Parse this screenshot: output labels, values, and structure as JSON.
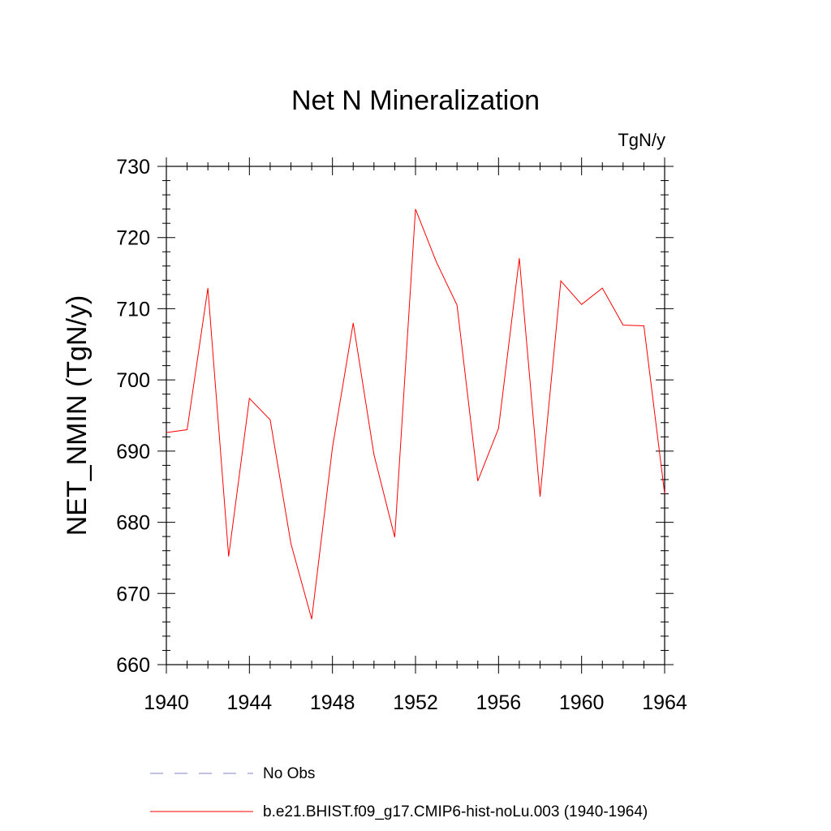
{
  "chart_data": {
    "type": "line",
    "title": "Net N Mineralization",
    "units_label": "TgN/y",
    "ylabel": "NET_NMIN  (TgN/y)",
    "xlabel": "",
    "xlim": [
      1940,
      1964
    ],
    "ylim": [
      660,
      730
    ],
    "x_ticks": [
      1940,
      1944,
      1948,
      1952,
      1956,
      1960,
      1964
    ],
    "y_ticks": [
      660,
      670,
      680,
      690,
      700,
      710,
      720,
      730
    ],
    "grid": false,
    "legend_position": "bottom",
    "legend": [
      {
        "label": "No Obs",
        "color": "#8080c0",
        "style": "dashed"
      },
      {
        "label": "b.e21.BHIST.f09_g17.CMIP6-hist-noLu.003 (1940-1964)",
        "color": "#ff0000",
        "style": "solid"
      }
    ],
    "series": [
      {
        "color": "#ff0000",
        "x": [
          1940,
          1941,
          1942,
          1943,
          1944,
          1945,
          1946,
          1947,
          1948,
          1949,
          1950,
          1951,
          1952,
          1953,
          1954,
          1955,
          1956,
          1957,
          1958,
          1959,
          1960,
          1961,
          1962,
          1963,
          1964
        ],
        "y": [
          692.6,
          693.0,
          712.9,
          675.2,
          697.4,
          694.4,
          677.0,
          666.4,
          690.5,
          708.0,
          689.5,
          677.9,
          724.0,
          716.6,
          710.5,
          685.8,
          693.2,
          717.1,
          683.6,
          713.9,
          710.6,
          712.9,
          707.7,
          707.6,
          684.0
        ]
      }
    ]
  }
}
